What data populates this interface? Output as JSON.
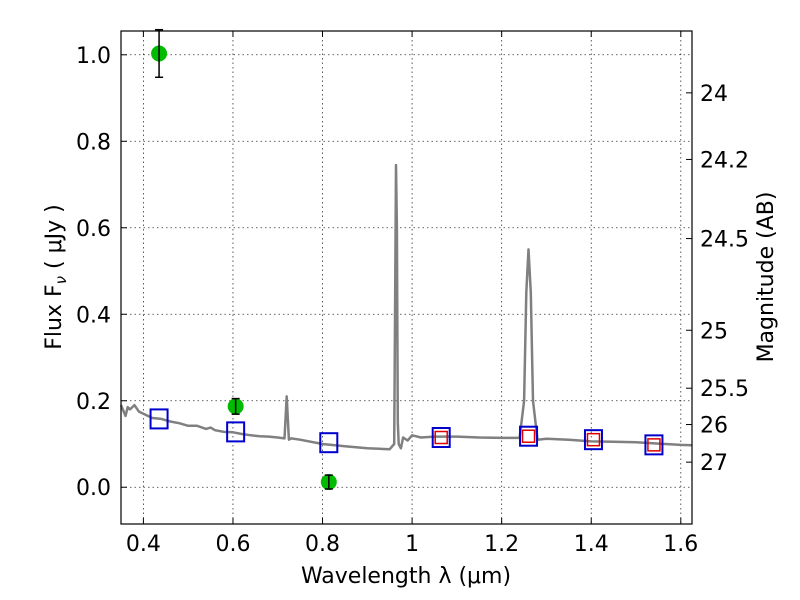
{
  "chart_data": {
    "type": "scatter",
    "title": "",
    "xlabel": "Wavelength  λ (μm)",
    "ylabel": "Flux  F",
    "ylabel_sub": "ν",
    "ylabel_unit": "  ( μJy )",
    "ylabel_right": "Magnitude (AB)",
    "xlim": [
      0.35,
      1.625
    ],
    "ylim": [
      -0.085,
      1.055
    ],
    "grid": true,
    "x_ticks": [
      {
        "value": 0.4,
        "label": "0.4"
      },
      {
        "value": 0.6,
        "label": "0.6"
      },
      {
        "value": 0.8,
        "label": "0.8"
      },
      {
        "value": 1.0,
        "label": "1"
      },
      {
        "value": 1.2,
        "label": "1.2"
      },
      {
        "value": 1.4,
        "label": "1.4"
      },
      {
        "value": 1.6,
        "label": "1.6"
      }
    ],
    "y_ticks": [
      {
        "value": 0.0,
        "label": "0.0"
      },
      {
        "value": 0.2,
        "label": "0.2"
      },
      {
        "value": 0.4,
        "label": "0.4"
      },
      {
        "value": 0.6,
        "label": "0.6"
      },
      {
        "value": 0.8,
        "label": "0.8"
      },
      {
        "value": 1.0,
        "label": "1.0"
      }
    ],
    "right_ticks": [
      {
        "flux": 0.912,
        "label": "24"
      },
      {
        "flux": 0.758,
        "label": "24.2"
      },
      {
        "flux": 0.575,
        "label": "24.5"
      },
      {
        "flux": 0.363,
        "label": "25"
      },
      {
        "flux": 0.229,
        "label": "25.5"
      },
      {
        "flux": 0.145,
        "label": "26"
      },
      {
        "flux": 0.058,
        "label": "27"
      }
    ],
    "series": [
      {
        "name": "template-spectrum",
        "kind": "line",
        "color": "#808080",
        "x": [
          0.35,
          0.36,
          0.365,
          0.37,
          0.38,
          0.39,
          0.4,
          0.42,
          0.44,
          0.46,
          0.48,
          0.5,
          0.52,
          0.54,
          0.55,
          0.56,
          0.58,
          0.6,
          0.62,
          0.64,
          0.66,
          0.68,
          0.7,
          0.715,
          0.72,
          0.725,
          0.73,
          0.75,
          0.8,
          0.85,
          0.9,
          0.95,
          0.96,
          0.964,
          0.966,
          0.968,
          0.97,
          0.975,
          0.98,
          0.99,
          1.0,
          1.02,
          1.05,
          1.1,
          1.15,
          1.2,
          1.24,
          1.25,
          1.255,
          1.26,
          1.265,
          1.27,
          1.28,
          1.3,
          1.35,
          1.4,
          1.45,
          1.5,
          1.55,
          1.6,
          1.625
        ],
        "y": [
          0.19,
          0.165,
          0.185,
          0.18,
          0.19,
          0.175,
          0.17,
          0.16,
          0.158,
          0.152,
          0.148,
          0.142,
          0.142,
          0.135,
          0.138,
          0.132,
          0.128,
          0.127,
          0.123,
          0.12,
          0.118,
          0.117,
          0.115,
          0.113,
          0.21,
          0.11,
          0.113,
          0.11,
          0.1,
          0.095,
          0.09,
          0.088,
          0.1,
          0.745,
          0.6,
          0.15,
          0.1,
          0.09,
          0.115,
          0.108,
          0.12,
          0.115,
          0.117,
          0.117,
          0.115,
          0.114,
          0.114,
          0.2,
          0.45,
          0.55,
          0.45,
          0.2,
          0.11,
          0.112,
          0.11,
          0.106,
          0.105,
          0.104,
          0.101,
          0.098,
          0.097
        ]
      },
      {
        "name": "observed-photometry",
        "kind": "errorbar",
        "color": "#00bb00",
        "x": [
          0.435,
          0.606,
          0.814
        ],
        "y": [
          1.003,
          0.187,
          0.012
        ],
        "yerr": [
          0.055,
          0.018,
          0.016
        ]
      },
      {
        "name": "model-photometry",
        "kind": "square",
        "color": "#0000cc",
        "x": [
          0.435,
          0.606,
          0.814,
          1.065,
          1.26,
          1.405,
          1.54
        ],
        "y": [
          0.158,
          0.128,
          0.103,
          0.115,
          0.118,
          0.11,
          0.098
        ]
      },
      {
        "name": "model-photometry-ir",
        "kind": "small-square",
        "color": "#dd0000",
        "x": [
          1.065,
          1.26,
          1.405,
          1.54
        ],
        "y": [
          0.115,
          0.118,
          0.11,
          0.098
        ]
      }
    ]
  }
}
